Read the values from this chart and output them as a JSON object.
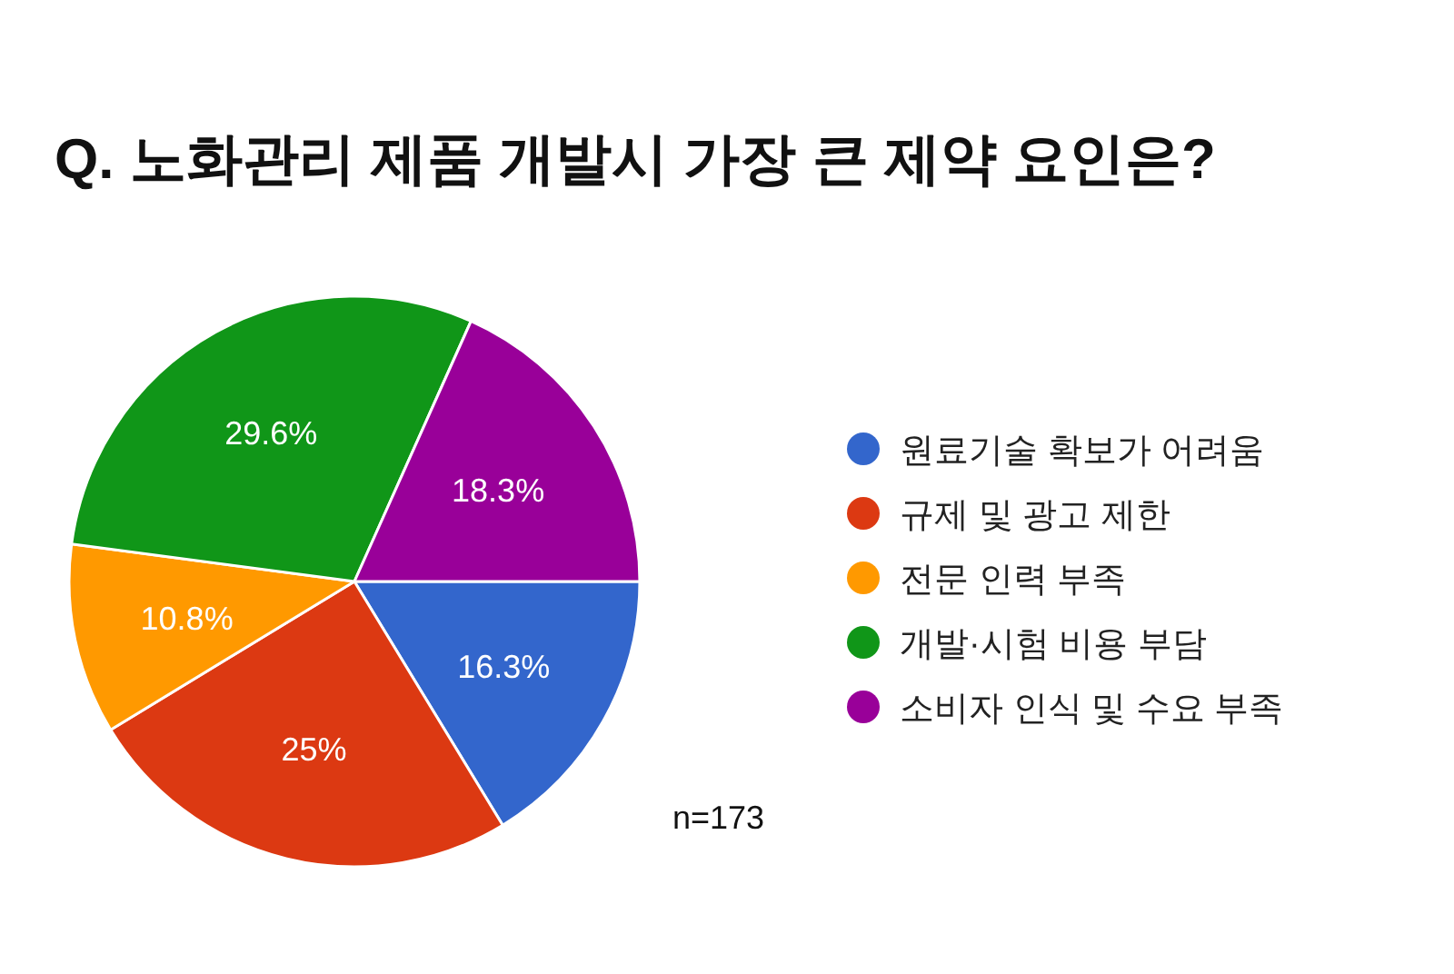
{
  "chart_data": {
    "type": "pie",
    "title": "Q. 노화관리 제품 개발시 가장 큰 제약 요인은?",
    "categories": [
      "원료기술 확보가 어려움",
      "규제 및 광고 제한",
      "전문 인력 부족",
      "개발·시험 비용 부담",
      "소비자 인식 및 수요 부족"
    ],
    "values": [
      16.3,
      25,
      10.8,
      29.6,
      18.3
    ],
    "value_labels": [
      "16.3%",
      "25%",
      "10.8%",
      "29.6%",
      "18.3%"
    ],
    "colors": [
      "#3366cc",
      "#dc3912",
      "#ff9900",
      "#109618",
      "#990099"
    ],
    "legend": "right",
    "annotations": [
      "n=173"
    ]
  }
}
